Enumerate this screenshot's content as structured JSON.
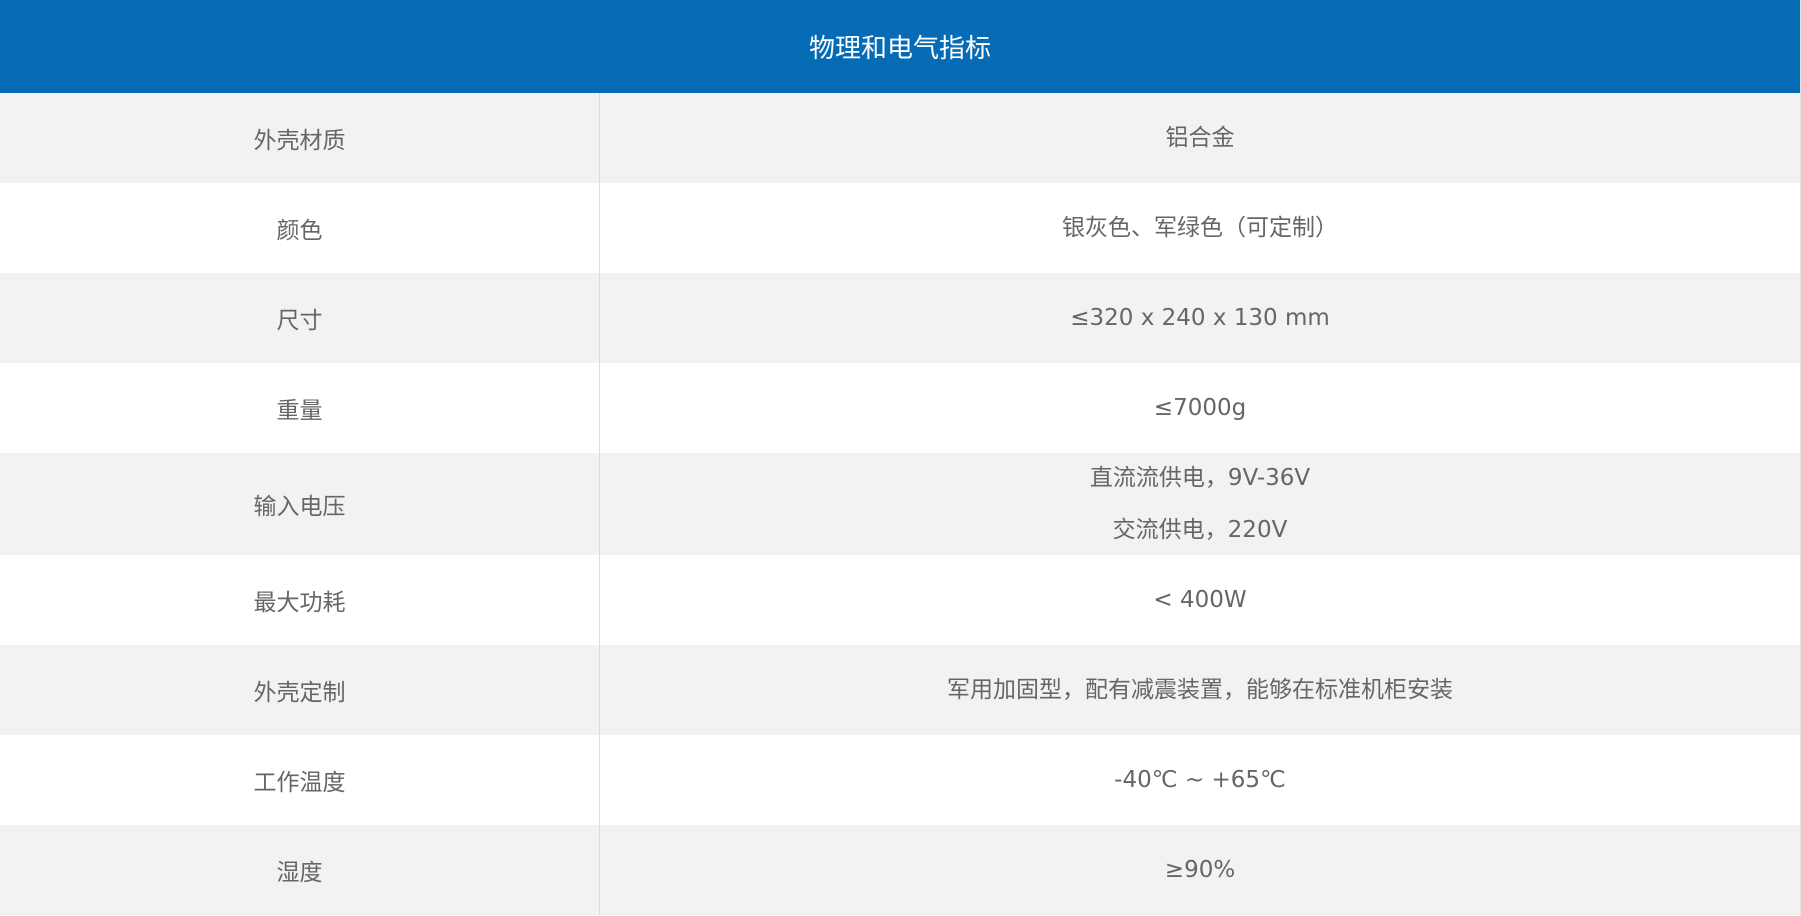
{
  "header": {
    "title": "物理和电气指标"
  },
  "rows": [
    {
      "label": "外壳材质",
      "values": [
        "铝合金"
      ]
    },
    {
      "label": "颜色",
      "values": [
        "银灰色、军绿色（可定制）"
      ]
    },
    {
      "label": "尺寸",
      "values": [
        "≤320 x 240 x 130 mm"
      ]
    },
    {
      "label": "重量",
      "values": [
        "≤7000g"
      ]
    },
    {
      "label": "输入电压",
      "values": [
        "直流流供电，9V-36V",
        "交流供电，220V"
      ]
    },
    {
      "label": "最大功耗",
      "values": [
        "< 400W"
      ]
    },
    {
      "label": "外壳定制",
      "values": [
        "军用加固型，配有减震装置，能够在标准机柜安装"
      ]
    },
    {
      "label": "工作温度",
      "values": [
        "-40℃ ~ +65℃"
      ]
    },
    {
      "label": "湿度",
      "values": [
        "≥90%"
      ]
    }
  ],
  "colors": {
    "header": "#056bb5",
    "stripe": "#f2f2f2",
    "text": "#666666"
  }
}
